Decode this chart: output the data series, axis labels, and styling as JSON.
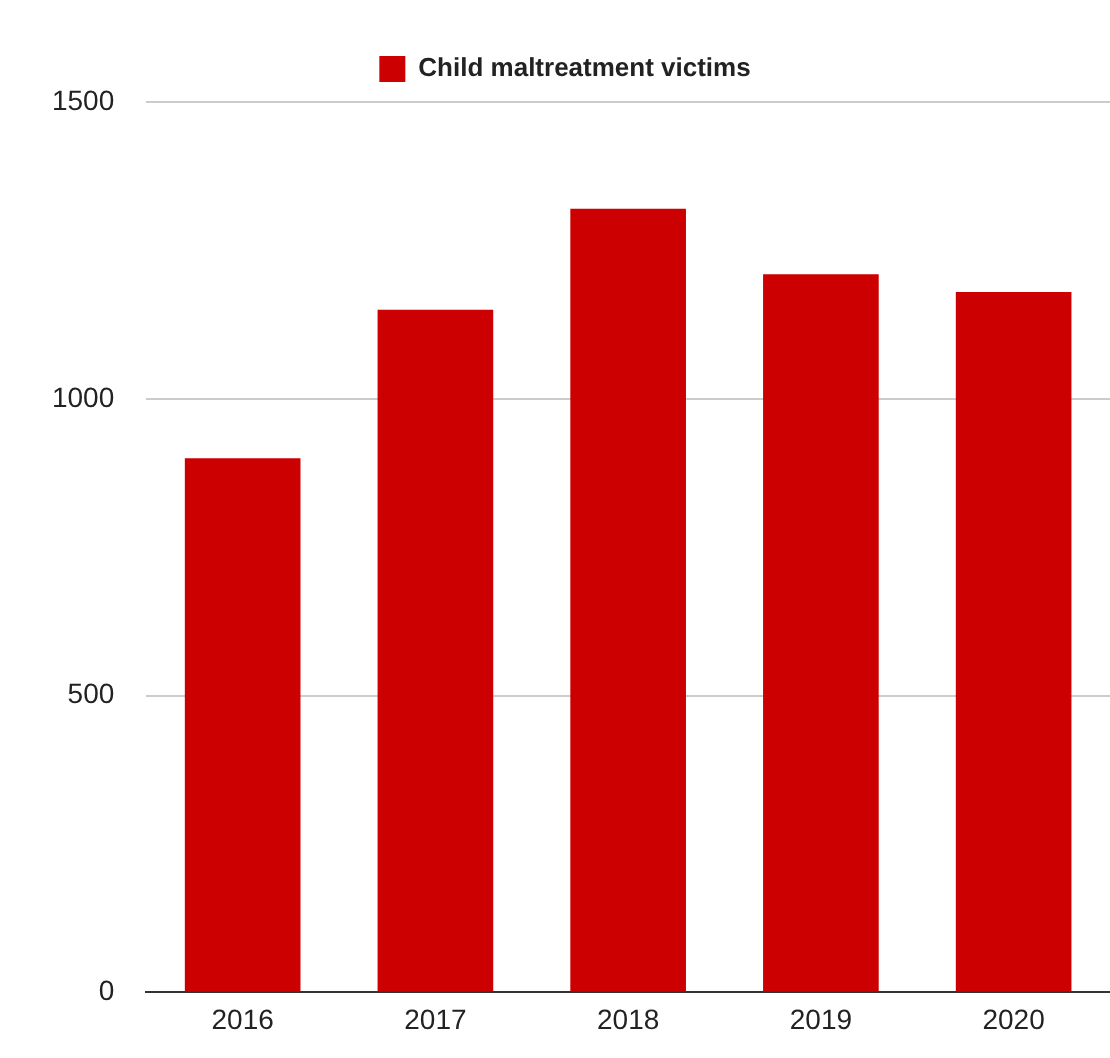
{
  "chart_data": {
    "type": "bar",
    "categories": [
      "2016",
      "2017",
      "2018",
      "2019",
      "2020"
    ],
    "series": [
      {
        "name": "Child maltreatment victims",
        "color": "#cc0000",
        "values": [
          900,
          1150,
          1320,
          1210,
          1180
        ]
      }
    ],
    "ylim": [
      0,
      1500
    ],
    "yticks": [
      0,
      500,
      1000,
      1500
    ],
    "grid": "y",
    "legend": "top"
  }
}
